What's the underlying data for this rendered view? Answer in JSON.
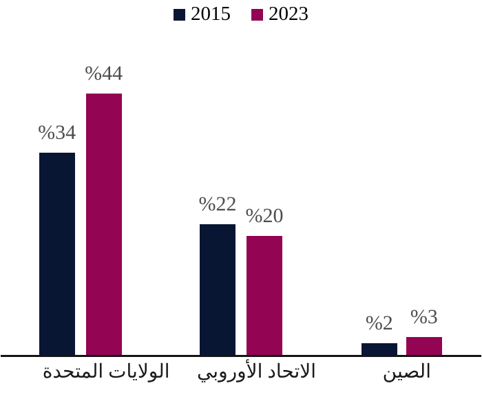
{
  "chart_data": {
    "type": "bar",
    "title": "",
    "xlabel": "",
    "ylabel": "",
    "categories": [
      "الولايات المتحدة",
      "الاتحاد الأوروبي",
      "الصين"
    ],
    "series": [
      {
        "name": "2015",
        "color": "#081633",
        "values": [
          34,
          22,
          2
        ],
        "value_labels": [
          "%34",
          "%22",
          "%2"
        ]
      },
      {
        "name": "2023",
        "color": "#930453",
        "values": [
          44,
          20,
          3
        ],
        "value_labels": [
          "%44",
          "%20",
          "%3"
        ]
      }
    ],
    "ylim": [
      0,
      48
    ],
    "grid": false,
    "legend_position": "top-center",
    "value_label_format": "percent-sign-before-number",
    "colors": {
      "axis_line": "#141414",
      "value_label": "#4d4d4d",
      "category_label": "#1a1a1a",
      "background": "#ffffff"
    }
  }
}
